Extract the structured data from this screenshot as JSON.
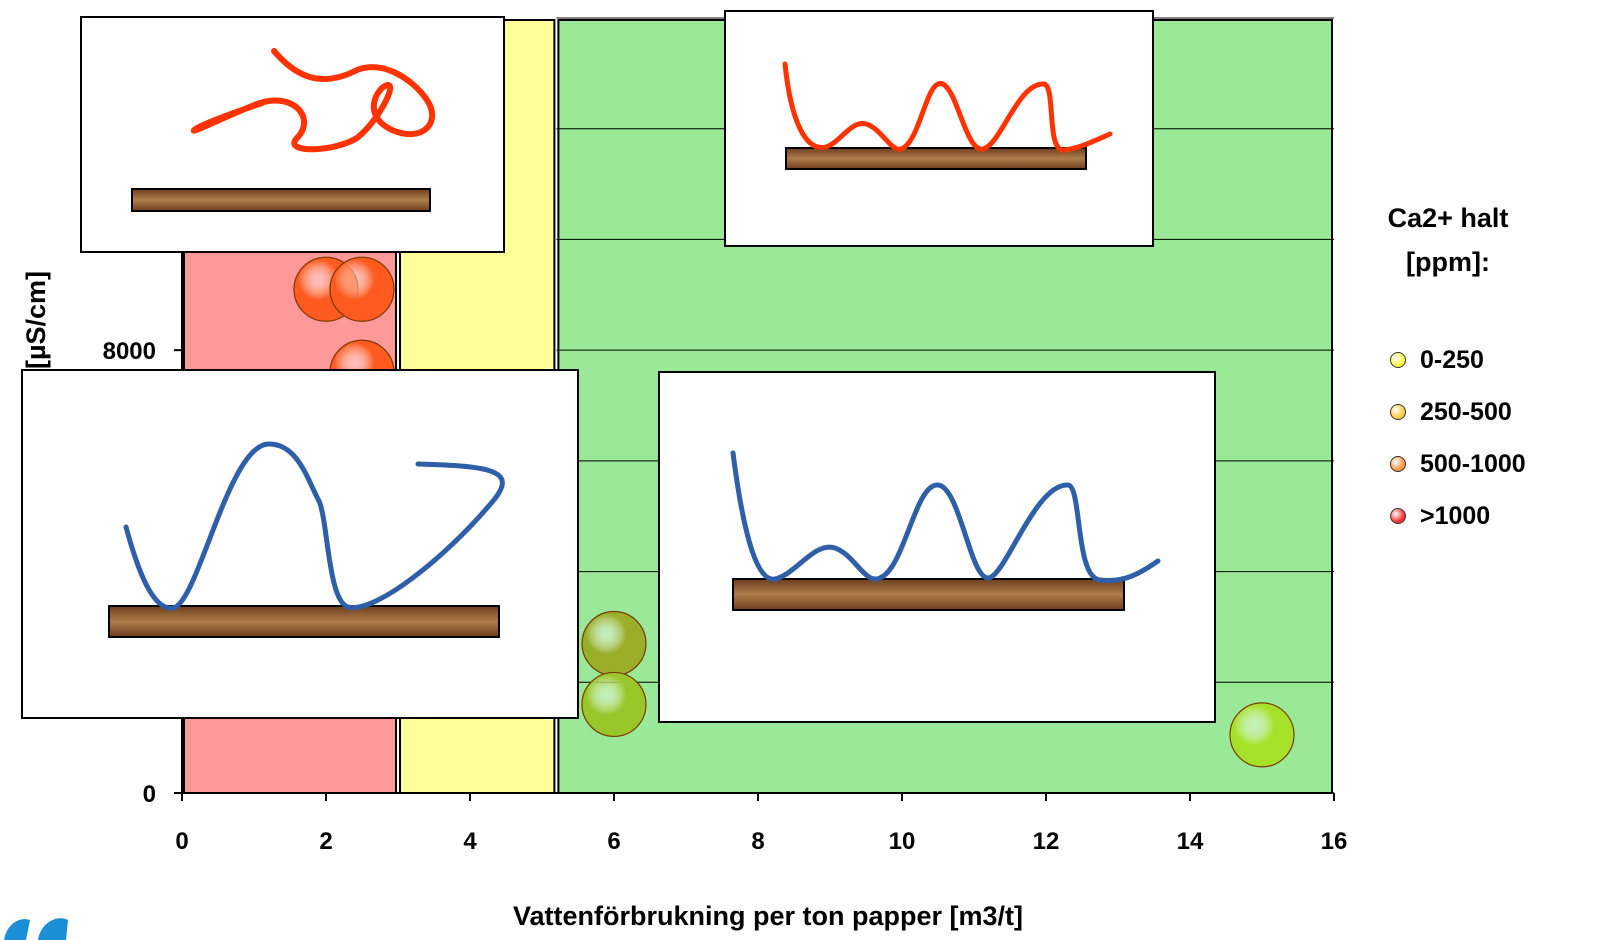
{
  "chart_data": {
    "type": "scatter",
    "title": "",
    "xlabel": "Vattenförbrukning per ton papper [m3/t]",
    "ylabel": "Konduktivitet [µS/cm]",
    "xlim": [
      0,
      16
    ],
    "ylim": [
      0,
      14000
    ],
    "x_ticks": [
      "0",
      "2",
      "4",
      "6",
      "8",
      "10",
      "12",
      "14",
      "16"
    ],
    "y_ticks": [
      "0",
      "8000"
    ],
    "y_tick_values": [
      0,
      8000
    ],
    "y_gridlines": [
      0,
      2000,
      4000,
      6000,
      8000,
      10000,
      12000,
      14000
    ],
    "regions": [
      {
        "x_from": 0,
        "x_to": 3,
        "color": "#ff9999"
      },
      {
        "x_from": 3,
        "x_to": 5.2,
        "color": "#ffff99"
      },
      {
        "x_from": 5.2,
        "x_to": 16,
        "color": "#99e999"
      }
    ],
    "points": [
      {
        "x": 2.0,
        "y": 9100,
        "color": "#ff5a1f"
      },
      {
        "x": 2.5,
        "y": 9100,
        "color": "#ff5a1f"
      },
      {
        "x": 2.5,
        "y": 7600,
        "color": "#ff5a1f"
      },
      {
        "x": 6.0,
        "y": 2700,
        "color": "#9aae2a"
      },
      {
        "x": 6.0,
        "y": 1600,
        "color": "#99c62a"
      },
      {
        "x": 15.0,
        "y": 1050,
        "color": "#a6e12a"
      }
    ],
    "legend": {
      "title": "Ca2+ halt [ppm]:",
      "position": "right",
      "entries": [
        {
          "label": "0-250",
          "color": "#ffff44"
        },
        {
          "label": "250-500",
          "color": "#ffcc44"
        },
        {
          "label": "500-1000",
          "color": "#ff9944"
        },
        {
          "label": ">1000",
          "color": "#ff3333"
        }
      ]
    }
  },
  "insets": [
    {
      "name": "red-tangled-fiber",
      "curve_color": "#ff3300"
    },
    {
      "name": "red-wavy-fiber",
      "curve_color": "#ff3300"
    },
    {
      "name": "blue-tangled-fiber",
      "curve_color": "#2e5fa8"
    },
    {
      "name": "blue-wavy-fiber",
      "curve_color": "#2e5fa8"
    }
  ]
}
